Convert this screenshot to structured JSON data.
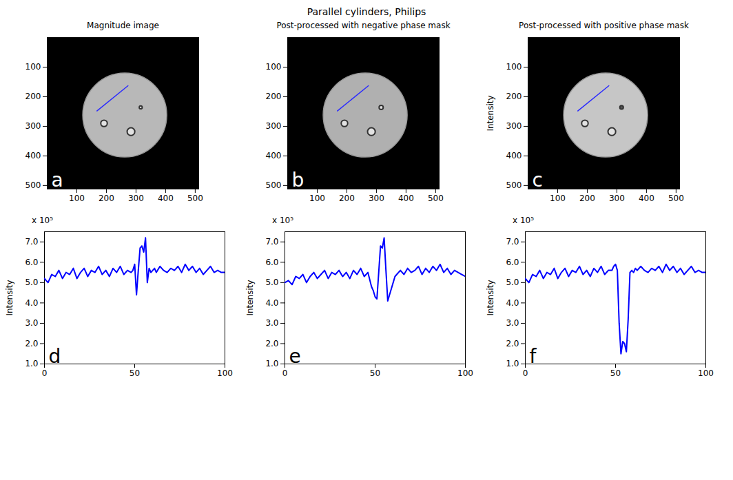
{
  "title": "Parallel cylinders, Philips",
  "chart_data": [
    {
      "type": "image",
      "title": "Magnitude image",
      "panel_label": "a",
      "xlim": [
        0,
        512
      ],
      "ylim": [
        0,
        512
      ],
      "xticks": [
        100,
        200,
        300,
        400,
        500
      ],
      "yticks": [
        100,
        200,
        300,
        400,
        500
      ],
      "disk": {
        "x": 262,
        "y": 262,
        "r": 142,
        "color": "#b8b8b8"
      },
      "inclusions": [
        {
          "x": 192,
          "y": 290,
          "r": 11,
          "color": "#e2e2e2"
        },
        {
          "x": 283,
          "y": 318,
          "r": 13,
          "color": "#e2e2e2"
        },
        {
          "x": 316,
          "y": 236,
          "r": 5,
          "color": "#f2f2f2"
        }
      ],
      "profile": {
        "x": [
          168,
          273
        ],
        "y": [
          248,
          163
        ],
        "color": "#2a2aff"
      }
    },
    {
      "type": "image",
      "title": "Post-processed with negative phase mask",
      "panel_label": "b",
      "xlim": [
        0,
        512
      ],
      "ylim": [
        0,
        512
      ],
      "xticks": [
        100,
        200,
        300,
        400,
        500
      ],
      "yticks": [
        100,
        200,
        300,
        400,
        500
      ],
      "disk": {
        "x": 262,
        "y": 262,
        "r": 142,
        "color": "#b0b0b0"
      },
      "inclusions": [
        {
          "x": 192,
          "y": 290,
          "r": 11,
          "color": "#e2e2e2"
        },
        {
          "x": 283,
          "y": 318,
          "r": 13,
          "color": "#e2e2e2"
        },
        {
          "x": 316,
          "y": 236,
          "r": 7,
          "color": "#dcdcdc"
        }
      ],
      "profile": {
        "x": [
          168,
          273
        ],
        "y": [
          248,
          163
        ],
        "color": "#2a2aff"
      }
    },
    {
      "type": "image",
      "title": "Post-processed with positive phase mask",
      "panel_label": "c",
      "ylabel": "Intensity",
      "xlim": [
        0,
        512
      ],
      "ylim": [
        0,
        512
      ],
      "xticks": [
        100,
        200,
        300,
        400,
        500
      ],
      "yticks": [
        100,
        200,
        300,
        400,
        500
      ],
      "disk": {
        "x": 262,
        "y": 262,
        "r": 142,
        "color": "#c6c6c6"
      },
      "inclusions": [
        {
          "x": 192,
          "y": 290,
          "r": 11,
          "color": "#e2e2e2"
        },
        {
          "x": 283,
          "y": 318,
          "r": 13,
          "color": "#e2e2e2"
        },
        {
          "x": 316,
          "y": 236,
          "r": 6,
          "color": "#555555"
        }
      ],
      "profile": {
        "x": [
          168,
          273
        ],
        "y": [
          248,
          163
        ],
        "color": "#2a2aff"
      }
    },
    {
      "type": "line",
      "panel_label": "d",
      "ylabel": "Intensity",
      "y_multiplier": "x 10⁵",
      "color": "#0000ff",
      "xlim": [
        0,
        100
      ],
      "xticks": [
        0,
        50,
        100
      ],
      "ylim": [
        1,
        7.5
      ],
      "yticks": [
        1,
        2,
        3,
        4,
        5,
        6,
        7
      ],
      "x": [
        0,
        2,
        4,
        6,
        8,
        10,
        12,
        14,
        16,
        18,
        20,
        22,
        24,
        26,
        28,
        30,
        32,
        34,
        36,
        38,
        40,
        42,
        44,
        46,
        48,
        49,
        50,
        51,
        52,
        53,
        54,
        55,
        56,
        57,
        58,
        59,
        60,
        61,
        62,
        64,
        66,
        68,
        70,
        72,
        74,
        76,
        78,
        80,
        82,
        84,
        86,
        88,
        90,
        92,
        94,
        96,
        98,
        100
      ],
      "values": [
        5.2,
        5.0,
        5.4,
        5.3,
        5.6,
        5.2,
        5.5,
        5.4,
        5.7,
        5.2,
        5.5,
        5.7,
        5.3,
        5.6,
        5.5,
        5.8,
        5.4,
        5.6,
        5.3,
        5.7,
        5.5,
        5.8,
        5.4,
        5.6,
        5.5,
        5.6,
        5.9,
        4.4,
        5.6,
        6.7,
        6.8,
        6.5,
        7.2,
        5.0,
        5.7,
        5.5,
        5.6,
        5.7,
        5.5,
        5.8,
        5.6,
        5.5,
        5.7,
        5.6,
        5.8,
        5.5,
        5.9,
        5.6,
        5.8,
        5.5,
        5.7,
        5.4,
        5.6,
        5.8,
        5.5,
        5.6,
        5.5,
        5.5
      ]
    },
    {
      "type": "line",
      "panel_label": "e",
      "ylabel": "Intensity",
      "y_multiplier": "x 10⁵",
      "color": "#0000ff",
      "xlim": [
        0,
        100
      ],
      "xticks": [
        0,
        50,
        100
      ],
      "ylim": [
        1,
        7.5
      ],
      "yticks": [
        1,
        2,
        3,
        4,
        5,
        6,
        7
      ],
      "x": [
        0,
        2,
        4,
        6,
        8,
        10,
        12,
        14,
        16,
        18,
        20,
        22,
        24,
        26,
        28,
        30,
        32,
        34,
        36,
        38,
        40,
        42,
        44,
        46,
        48,
        49,
        50,
        51,
        52,
        53,
        54,
        55,
        56,
        57,
        58,
        59,
        60,
        61,
        62,
        64,
        66,
        68,
        70,
        72,
        74,
        76,
        78,
        80,
        82,
        84,
        86,
        88,
        90,
        92,
        94,
        96,
        98,
        100
      ],
      "values": [
        5.0,
        5.1,
        4.9,
        5.3,
        5.2,
        5.4,
        5.0,
        5.3,
        5.5,
        5.2,
        5.4,
        5.6,
        5.2,
        5.5,
        5.4,
        5.6,
        5.3,
        5.5,
        5.2,
        5.6,
        5.4,
        5.7,
        5.3,
        5.5,
        4.8,
        4.6,
        4.3,
        4.2,
        5.5,
        6.8,
        6.7,
        7.2,
        5.6,
        4.1,
        4.4,
        4.7,
        5.0,
        5.3,
        5.4,
        5.6,
        5.4,
        5.7,
        5.5,
        5.6,
        5.8,
        5.4,
        5.7,
        5.5,
        5.8,
        5.6,
        5.9,
        5.5,
        5.7,
        5.4,
        5.6,
        5.5,
        5.4,
        5.3
      ]
    },
    {
      "type": "line",
      "panel_label": "f",
      "ylabel": "Intensity",
      "y_multiplier": "x 10⁵",
      "color": "#0000ff",
      "xlim": [
        0,
        100
      ],
      "xticks": [
        0,
        50,
        100
      ],
      "ylim": [
        1,
        7.5
      ],
      "yticks": [
        1,
        2,
        3,
        4,
        5,
        6,
        7
      ],
      "x": [
        0,
        2,
        4,
        6,
        8,
        10,
        12,
        14,
        16,
        18,
        20,
        22,
        24,
        26,
        28,
        30,
        32,
        34,
        36,
        38,
        40,
        42,
        44,
        46,
        48,
        49,
        50,
        51,
        52,
        53,
        54,
        55,
        56,
        57,
        58,
        59,
        60,
        61,
        62,
        64,
        66,
        68,
        70,
        72,
        74,
        76,
        78,
        80,
        82,
        84,
        86,
        88,
        90,
        92,
        94,
        96,
        98,
        100
      ],
      "values": [
        5.2,
        5.0,
        5.4,
        5.3,
        5.6,
        5.2,
        5.5,
        5.4,
        5.7,
        5.2,
        5.5,
        5.7,
        5.3,
        5.6,
        5.5,
        5.8,
        5.4,
        5.6,
        5.3,
        5.7,
        5.5,
        5.8,
        5.4,
        5.6,
        5.6,
        5.8,
        5.9,
        5.6,
        3.0,
        1.5,
        2.1,
        2.0,
        1.6,
        3.2,
        5.5,
        5.6,
        5.5,
        5.7,
        5.6,
        5.8,
        5.6,
        5.5,
        5.7,
        5.6,
        5.8,
        5.5,
        5.9,
        5.6,
        5.8,
        5.5,
        5.7,
        5.4,
        5.6,
        5.8,
        5.5,
        5.6,
        5.5,
        5.5
      ]
    }
  ]
}
